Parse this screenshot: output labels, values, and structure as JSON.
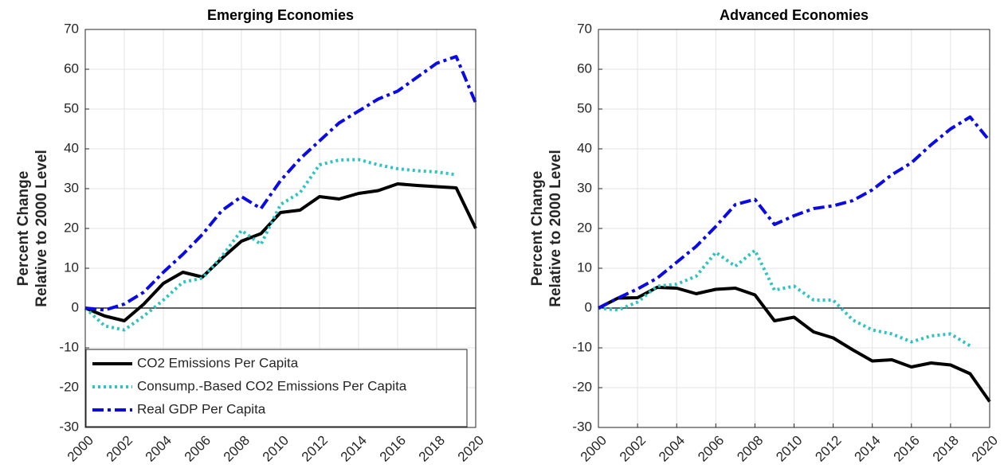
{
  "chart_data": [
    {
      "type": "line",
      "title": "Emerging Economies",
      "y_label": [
        "Percent Change",
        "Relative to 2000 Level"
      ],
      "x": [
        2000,
        2001,
        2002,
        2003,
        2004,
        2005,
        2006,
        2007,
        2008,
        2009,
        2010,
        2011,
        2012,
        2013,
        2014,
        2015,
        2016,
        2017,
        2018,
        2019,
        2020
      ],
      "xlim": [
        2000,
        2020
      ],
      "xticks": [
        2000,
        2002,
        2004,
        2006,
        2008,
        2010,
        2012,
        2014,
        2016,
        2018,
        2020
      ],
      "ylim": [
        -30,
        70
      ],
      "yticks": [
        -30,
        -20,
        -10,
        0,
        10,
        20,
        30,
        40,
        50,
        60,
        70
      ],
      "grid": true,
      "zero_line": true,
      "legend": "lower left",
      "series": [
        {
          "name": "CO2 Emissions Per Capita",
          "color": "#000000",
          "style": "solid",
          "values": [
            0,
            -2,
            -3.2,
            1,
            6.2,
            9,
            7.8,
            12.5,
            16.8,
            18.7,
            24,
            24.6,
            28,
            27.4,
            28.8,
            29.5,
            31.2,
            30.8,
            30.5,
            30.2,
            20
          ]
        },
        {
          "name": "Consump.-Based CO2 Emissions Per Capita",
          "color": "#2ec4c0",
          "style": "dotted",
          "values": [
            0,
            -4.5,
            -5.5,
            -2,
            2,
            6.5,
            7.5,
            13,
            19.5,
            16,
            26,
            29,
            36,
            37.2,
            37.3,
            36,
            35,
            34.5,
            34.2,
            33.5,
            null
          ]
        },
        {
          "name": "Real GDP Per Capita",
          "color": "#0a0ae6",
          "style": "dashdot",
          "values": [
            0,
            -0.5,
            1,
            4,
            9,
            13.5,
            18.5,
            24.5,
            28,
            25,
            32,
            37.5,
            42,
            46.5,
            49.5,
            52.5,
            54.5,
            58,
            61.5,
            63.2,
            51.5
          ]
        }
      ]
    },
    {
      "type": "line",
      "title": "Advanced Economies",
      "y_label": [
        "Percent Change",
        "Relative to 2000 Level"
      ],
      "x": [
        2000,
        2001,
        2002,
        2003,
        2004,
        2005,
        2006,
        2007,
        2008,
        2009,
        2010,
        2011,
        2012,
        2013,
        2014,
        2015,
        2016,
        2017,
        2018,
        2019,
        2020
      ],
      "xlim": [
        2000,
        2020
      ],
      "xticks": [
        2000,
        2002,
        2004,
        2006,
        2008,
        2010,
        2012,
        2014,
        2016,
        2018,
        2020
      ],
      "ylim": [
        -30,
        70
      ],
      "yticks": [
        -30,
        -20,
        -10,
        0,
        10,
        20,
        30,
        40,
        50,
        60,
        70
      ],
      "grid": true,
      "zero_line": true,
      "series": [
        {
          "color": "#000000",
          "style": "solid",
          "values": [
            0,
            2.5,
            2.6,
            5.2,
            5,
            3.6,
            4.7,
            5,
            3.3,
            -3.2,
            -2.3,
            -6,
            -7.5,
            -10.5,
            -13.3,
            -13,
            -14.8,
            -13.8,
            -14.3,
            -16.5,
            -23.5
          ]
        },
        {
          "color": "#2ec4c0",
          "style": "dotted",
          "values": [
            0,
            -0.5,
            1.5,
            5.5,
            6,
            8,
            14,
            10.5,
            14.5,
            4.5,
            5.5,
            2,
            2,
            -3,
            -5.5,
            -6.5,
            -8.5,
            -7,
            -6.5,
            -9.5,
            null
          ]
        },
        {
          "color": "#0a0ae6",
          "style": "dashdot",
          "values": [
            0,
            2.5,
            4.8,
            7.5,
            11.5,
            15.5,
            20.5,
            26,
            27.3,
            21,
            23.2,
            25,
            25.7,
            27,
            29.7,
            33.5,
            36.5,
            41,
            45,
            48,
            42
          ]
        }
      ]
    }
  ]
}
